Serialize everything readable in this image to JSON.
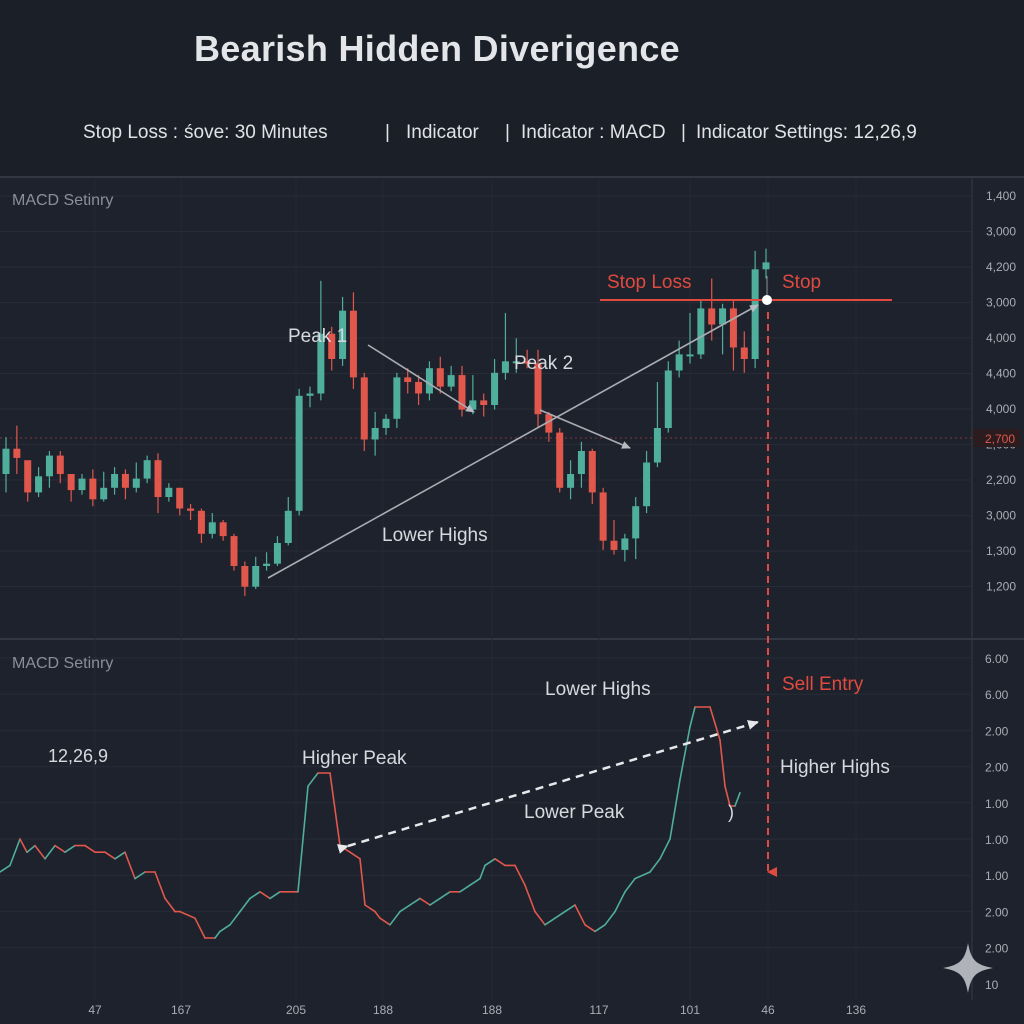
{
  "header": {
    "title": "Bearish Hidden Diverigence",
    "info_stop": "Stop Loss : ",
    "info_stop_value": "śove: 30 Minutes",
    "info_indicator": "Indicator",
    "info_indicator_macd": "Indicator : MACD",
    "info_settings": "Indicator Settings: 12,26,9"
  },
  "price_panel": {
    "label": "MACD Setinry",
    "annotations": {
      "peak1": "Peak 1",
      "peak2": "Peak 2",
      "lower_highs": "Lower Highs",
      "stop_loss": "Stop Loss",
      "stop": "Stop"
    },
    "price_tag": "2,700"
  },
  "macd_panel": {
    "label": "MACD Setinry",
    "settings": "12,26,9",
    "annotations": {
      "lower_highs": "Lower Highs",
      "higher_peak": "Higher Peak",
      "lower_peak": "Lower Peak",
      "sell_entry": "Sell Entry",
      "higher_highs": "Higher Highs",
      "paren": ")"
    }
  },
  "chart_data": [
    {
      "type": "candlestick",
      "y_axis_labels": [
        "1,400",
        "3,000",
        "4,200",
        "3,000",
        "4,000",
        "4,400",
        "4,000",
        "2,000",
        "2,200",
        "3,000",
        "1,300",
        "1,200"
      ],
      "candles_ohlc": [
        [
          20,
          31,
          12,
          36
        ],
        [
          31,
          27,
          20,
          41
        ],
        [
          26,
          12,
          8,
          15
        ],
        [
          12,
          19,
          10,
          23
        ],
        [
          19,
          28,
          14,
          30
        ],
        [
          28,
          20,
          16,
          30
        ],
        [
          20,
          13,
          8,
          16
        ],
        [
          13,
          18,
          11,
          20
        ],
        [
          18,
          9,
          6,
          22
        ],
        [
          9,
          14,
          8,
          21
        ],
        [
          14,
          20,
          11,
          23
        ],
        [
          20,
          14,
          9,
          22
        ],
        [
          14,
          18,
          12,
          25
        ],
        [
          18,
          26,
          16,
          28
        ],
        [
          26,
          10,
          3,
          29
        ],
        [
          10,
          14,
          8,
          16
        ],
        [
          14,
          5,
          2,
          14
        ],
        [
          5,
          4,
          0,
          7
        ],
        [
          4,
          -6,
          -10,
          5
        ],
        [
          -6,
          -1,
          -8,
          3
        ],
        [
          -1,
          -7,
          -9,
          0
        ],
        [
          -7,
          -20,
          -22,
          -6
        ],
        [
          -20,
          -29,
          -33,
          -18
        ],
        [
          -29,
          -20,
          -30,
          -16
        ],
        [
          -20,
          -19,
          -22,
          -14
        ],
        [
          -19,
          -10,
          -20,
          -7
        ],
        [
          -10,
          4,
          -11,
          10
        ],
        [
          4,
          54,
          2,
          57
        ],
        [
          54,
          55,
          49,
          58
        ],
        [
          55,
          81,
          52,
          104
        ],
        [
          81,
          70,
          65,
          84
        ],
        [
          70,
          91,
          67,
          97
        ],
        [
          91,
          62,
          57,
          99
        ],
        [
          62,
          35,
          30,
          64
        ],
        [
          35,
          40,
          28,
          47
        ],
        [
          40,
          44,
          37,
          46
        ],
        [
          44,
          62,
          40,
          64
        ],
        [
          62,
          60,
          55,
          66
        ],
        [
          60,
          55,
          50,
          63
        ],
        [
          55,
          66,
          52,
          69
        ],
        [
          66,
          58,
          55,
          71
        ],
        [
          58,
          63,
          56,
          67
        ],
        [
          63,
          48,
          45,
          67
        ],
        [
          48,
          52,
          46,
          63
        ],
        [
          52,
          50,
          45,
          55
        ],
        [
          50,
          64,
          48,
          70
        ],
        [
          64,
          69,
          61,
          90
        ],
        [
          69,
          69,
          64,
          79
        ],
        [
          69,
          68,
          66,
          74
        ],
        [
          68,
          46,
          40,
          74
        ],
        [
          46,
          38,
          34,
          47
        ],
        [
          38,
          14,
          12,
          40
        ],
        [
          14,
          20,
          9,
          26
        ],
        [
          20,
          30,
          14,
          34
        ],
        [
          30,
          12,
          7,
          31
        ],
        [
          12,
          -9,
          -13,
          14
        ],
        [
          -9,
          -13,
          -15,
          0
        ],
        [
          -13,
          -8,
          -18,
          -6
        ],
        [
          -8,
          6,
          -17,
          10
        ],
        [
          6,
          25,
          3,
          30
        ],
        [
          25,
          40,
          23,
          60
        ],
        [
          40,
          65,
          38,
          69
        ],
        [
          65,
          72,
          62,
          78
        ],
        [
          72,
          72,
          68,
          90
        ],
        [
          72,
          92,
          70,
          96
        ],
        [
          92,
          85,
          78,
          105
        ],
        [
          85,
          92,
          72,
          94
        ],
        [
          92,
          75,
          65,
          96
        ],
        [
          75,
          70,
          64,
          82
        ],
        [
          70,
          109,
          66,
          117
        ],
        [
          109,
          112,
          105,
          118
        ]
      ]
    },
    {
      "type": "line",
      "name": "MACD",
      "y_axis_labels": [
        "6.00",
        "6.00",
        "2.00",
        "2.00",
        "1.00",
        "1.00",
        "1.00",
        "2.00",
        "2.00",
        "10"
      ],
      "x_tick_labels": [
        "47",
        "167",
        "205",
        "188",
        "188",
        "117",
        "101",
        "46",
        "136"
      ],
      "points": [
        [
          0,
          0.0
        ],
        [
          10,
          0.1
        ],
        [
          20,
          0.5
        ],
        [
          27,
          0.3
        ],
        [
          35,
          0.4
        ],
        [
          45,
          0.2
        ],
        [
          55,
          0.4
        ],
        [
          65,
          0.3
        ],
        [
          75,
          0.4
        ],
        [
          85,
          0.4
        ],
        [
          95,
          0.3
        ],
        [
          105,
          0.3
        ],
        [
          115,
          0.2
        ],
        [
          125,
          0.3
        ],
        [
          135,
          -0.1
        ],
        [
          145,
          0.0
        ],
        [
          155,
          0.0
        ],
        [
          165,
          -0.4
        ],
        [
          175,
          -0.6
        ],
        [
          180,
          -0.6
        ],
        [
          195,
          -0.7
        ],
        [
          205,
          -1.0
        ],
        [
          215,
          -1.0
        ],
        [
          220,
          -0.9
        ],
        [
          230,
          -0.8
        ],
        [
          240,
          -0.6
        ],
        [
          250,
          -0.4
        ],
        [
          260,
          -0.3
        ],
        [
          270,
          -0.4
        ],
        [
          280,
          -0.3
        ],
        [
          298,
          -0.3
        ],
        [
          308,
          1.3
        ],
        [
          318,
          1.5
        ],
        [
          330,
          1.5
        ],
        [
          340,
          0.4
        ],
        [
          350,
          0.3
        ],
        [
          360,
          0.2
        ],
        [
          365,
          -0.5
        ],
        [
          375,
          -0.6
        ],
        [
          380,
          -0.7
        ],
        [
          390,
          -0.8
        ],
        [
          400,
          -0.6
        ],
        [
          410,
          -0.5
        ],
        [
          420,
          -0.4
        ],
        [
          430,
          -0.5
        ],
        [
          440,
          -0.4
        ],
        [
          450,
          -0.3
        ],
        [
          460,
          -0.3
        ],
        [
          470,
          -0.2
        ],
        [
          480,
          -0.1
        ],
        [
          485,
          0.1
        ],
        [
          495,
          0.2
        ],
        [
          505,
          0.1
        ],
        [
          515,
          0.1
        ],
        [
          525,
          -0.2
        ],
        [
          535,
          -0.6
        ],
        [
          545,
          -0.8
        ],
        [
          555,
          -0.7
        ],
        [
          565,
          -0.6
        ],
        [
          575,
          -0.5
        ],
        [
          585,
          -0.8
        ],
        [
          595,
          -0.9
        ],
        [
          605,
          -0.8
        ],
        [
          615,
          -0.6
        ],
        [
          625,
          -0.3
        ],
        [
          635,
          -0.1
        ],
        [
          650,
          0.0
        ],
        [
          660,
          0.2
        ],
        [
          670,
          0.5
        ],
        [
          680,
          1.4
        ],
        [
          690,
          2.2
        ],
        [
          695,
          2.5
        ],
        [
          710,
          2.5
        ],
        [
          720,
          2.0
        ],
        [
          725,
          1.3
        ],
        [
          730,
          1.0
        ],
        [
          735,
          1.0
        ],
        [
          740,
          1.2
        ]
      ]
    }
  ],
  "colors": {
    "bull": "#4fae9c",
    "bear": "#e2574c",
    "annotation_red": "#e04a3f",
    "axis_text": "#a8adb5",
    "grid": "#272c37"
  },
  "watermark": "gemini-sparkle"
}
